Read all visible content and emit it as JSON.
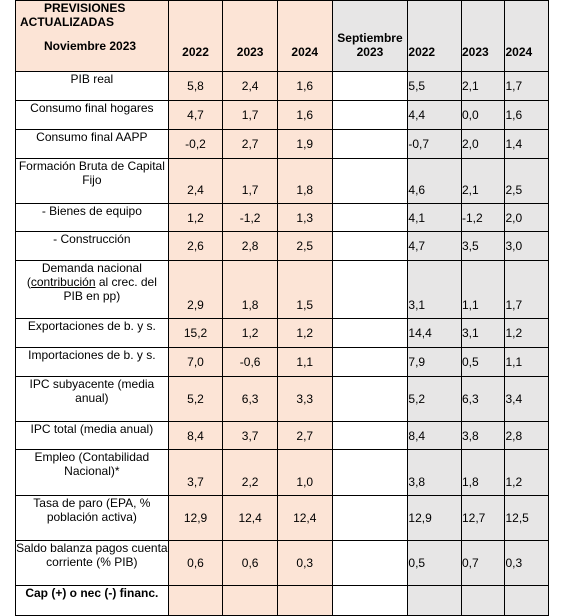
{
  "header": {
    "title_line1": "PREVISIONES",
    "title_line2": "ACTUALIZADAS",
    "title_date": "Noviembre 2023",
    "years": [
      "2022",
      "2023",
      "2024"
    ],
    "sep_line1": "Septiembre",
    "sep_line2": "2023",
    "sep_years": [
      "2022",
      "2023",
      "2024"
    ]
  },
  "rows": [
    {
      "label": "PIB real",
      "nov": [
        "5,8",
        "2,4",
        "1,6"
      ],
      "sep": [
        "5,5",
        "2,1",
        "1,7"
      ]
    },
    {
      "label": "Consumo final hogares",
      "nov": [
        "4,7",
        "1,7",
        "1,6"
      ],
      "sep": [
        "4,4",
        "0,0",
        "1,6"
      ]
    },
    {
      "label": "Consumo final AAPP",
      "nov": [
        "-0,2",
        "2,7",
        "1,9"
      ],
      "sep": [
        "-0,7",
        "2,0",
        "1,4"
      ]
    },
    {
      "label": "Formación Bruta de Capital Fijo",
      "nov": [
        "2,4",
        "1,7",
        "1,8"
      ],
      "sep": [
        "4,6",
        "2,1",
        "2,5"
      ]
    },
    {
      "label": "- Bienes de equipo",
      "nov": [
        "1,2",
        "-1,2",
        "1,3"
      ],
      "sep": [
        "4,1",
        "-1,2",
        "2,0"
      ]
    },
    {
      "label": "- Construcción",
      "nov": [
        "2,6",
        "2,8",
        "2,5"
      ],
      "sep": [
        "4,7",
        "3,5",
        "3,0"
      ]
    },
    {
      "label_a": "Demanda nacional",
      "label_u": "contribución",
      "label_b": "al crec. del PIB en pp)",
      "nov": [
        "2,9",
        "1,8",
        "1,5"
      ],
      "sep": [
        "3,1",
        "1,1",
        "1,7"
      ]
    },
    {
      "label": "Exportaciones de b. y s.",
      "nov": [
        "15,2",
        "1,2",
        "1,2"
      ],
      "sep": [
        "14,4",
        "3,1",
        "1,2"
      ]
    },
    {
      "label": "Importaciones de b. y s.",
      "nov": [
        "7,0",
        "-0,6",
        "1,1"
      ],
      "sep": [
        "7,9",
        "0,5",
        "1,1"
      ]
    },
    {
      "label": "IPC subyacente (media anual)",
      "nov": [
        "5,2",
        "6,3",
        "3,3"
      ],
      "sep": [
        "5,2",
        "6,3",
        "3,4"
      ]
    },
    {
      "label": "IPC total (media anual)",
      "nov": [
        "8,4",
        "3,7",
        "2,7"
      ],
      "sep": [
        "8,4",
        "3,8",
        "2,8"
      ]
    },
    {
      "label": "Empleo (Contabilidad Nacional)*",
      "nov": [
        "3,7",
        "2,2",
        "1,0"
      ],
      "sep": [
        "3,8",
        "1,8",
        "1,2"
      ]
    },
    {
      "label": "Tasa de paro (EPA, % población activa)",
      "nov": [
        "12,9",
        "12,4",
        "12,4"
      ],
      "sep": [
        "12,9",
        "12,7",
        "12,5"
      ]
    },
    {
      "label": "Saldo balanza pagos cuenta corriente (% PIB)",
      "nov": [
        "0,6",
        "0,6",
        "0,3"
      ],
      "sep": [
        "0,5",
        "0,7",
        "0,3"
      ]
    },
    {
      "label": "Cap (+) o nec (-) financ."
    }
  ]
}
